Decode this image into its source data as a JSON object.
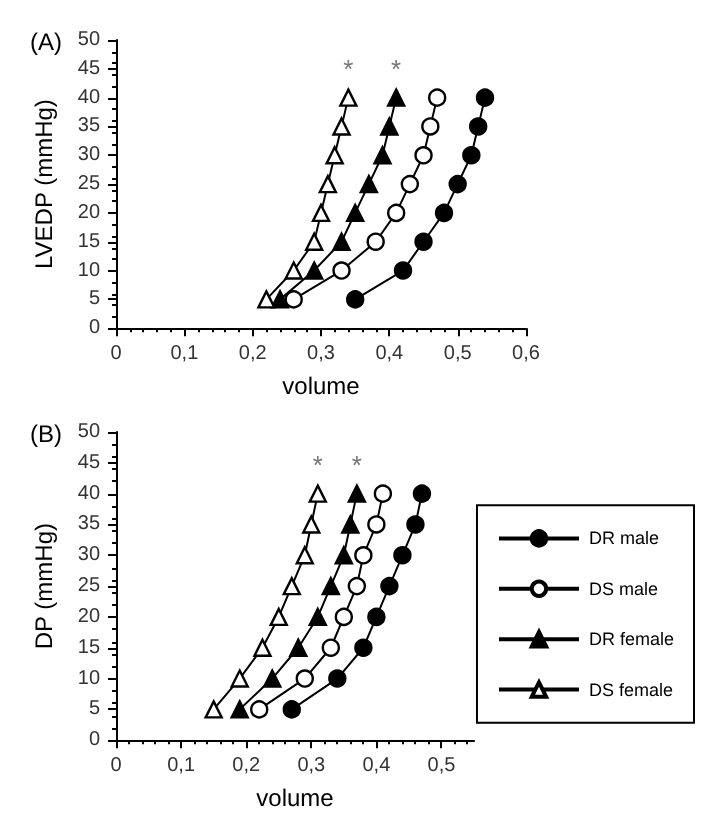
{
  "chart_data": [
    {
      "type": "line",
      "title": "(A)",
      "xlabel": "volume",
      "ylabel": "LVEDP (mmHg)",
      "x": [
        5,
        10,
        15,
        20,
        25,
        30,
        35,
        40
      ],
      "orientation": "horizontal",
      "series": [
        {
          "color": "#000000",
          "marker": "circle",
          "values": [
            0.35,
            0.42,
            0.45,
            0.48,
            0.5,
            0.52,
            0.53,
            0.54
          ]
        },
        {
          "color": "#ffffff",
          "marker": "circle",
          "values": [
            0.26,
            0.33,
            0.38,
            0.41,
            0.43,
            0.45,
            0.46,
            0.47
          ]
        },
        {
          "color": "#000000",
          "marker": "triangle",
          "values": [
            0.24,
            0.29,
            0.33,
            0.35,
            0.37,
            0.39,
            0.4,
            0.41
          ]
        },
        {
          "color": "#ffffff",
          "marker": "triangle",
          "values": [
            0.22,
            0.26,
            0.29,
            0.3,
            0.31,
            0.32,
            0.33,
            0.34
          ]
        }
      ],
      "xlim": [
        0,
        0.6
      ],
      "xticks": [
        0,
        {
          "value": 0.1,
          "label": "0,1"
        },
        {
          "value": 0.2,
          "label": "0,2"
        },
        {
          "value": 0.3,
          "label": "0,3"
        },
        {
          "value": 0.4,
          "label": "0,4"
        },
        {
          "value": 0.5,
          "label": "0,5"
        },
        {
          "value": 0.6,
          "label": "0,6"
        }
      ],
      "ylim": [
        0,
        50
      ],
      "yticks": [
        0,
        5,
        10,
        15,
        20,
        25,
        30,
        35,
        40,
        45,
        50
      ],
      "annotations": [
        "*",
        "*"
      ],
      "grid": false,
      "legend": false,
      "line_style": "solid"
    },
    {
      "type": "line",
      "title": "(B)",
      "xlabel": "volume",
      "ylabel": "DP (mmHg)",
      "x": [
        5,
        10,
        15,
        20,
        25,
        30,
        35,
        40
      ],
      "orientation": "horizontal",
      "series": [
        {
          "name": "DR male",
          "color": "#000000",
          "marker": "circle",
          "values": [
            0.27,
            0.34,
            0.38,
            0.4,
            0.42,
            0.44,
            0.46,
            0.47
          ]
        },
        {
          "name": "DS male",
          "color": "#ffffff",
          "marker": "circle",
          "values": [
            0.22,
            0.29,
            0.33,
            0.35,
            0.37,
            0.38,
            0.4,
            0.41
          ]
        },
        {
          "name": "DR female",
          "color": "#000000",
          "marker": "triangle",
          "values": [
            0.19,
            0.24,
            0.28,
            0.31,
            0.33,
            0.35,
            0.36,
            0.37
          ]
        },
        {
          "name": "DS female",
          "color": "#ffffff",
          "marker": "triangle",
          "values": [
            0.15,
            0.19,
            0.225,
            0.25,
            0.27,
            0.29,
            0.3,
            0.31
          ]
        }
      ],
      "xlim": [
        0,
        0.55
      ],
      "xticks": [
        0,
        {
          "value": 0.1,
          "label": "0,1"
        },
        {
          "value": 0.2,
          "label": "0,2"
        },
        {
          "value": 0.3,
          "label": "0,3"
        },
        {
          "value": 0.4,
          "label": "0,4"
        },
        {
          "value": 0.5,
          "label": "0,5"
        }
      ],
      "ylim": [
        0,
        50
      ],
      "yticks": [
        0,
        5,
        10,
        15,
        20,
        25,
        30,
        35,
        40,
        45,
        50
      ],
      "annotations": [
        "*",
        "*"
      ],
      "grid": false,
      "legend": "right",
      "line_style": "solid"
    }
  ]
}
